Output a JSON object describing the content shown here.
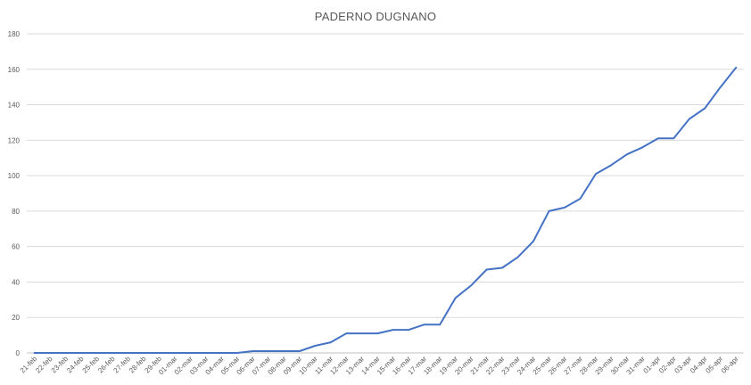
{
  "chart_data": {
    "type": "line",
    "title": "PADERNO DUGNANO",
    "xlabel": "",
    "ylabel": "",
    "ylim": [
      0,
      180
    ],
    "yticks": [
      0,
      20,
      40,
      60,
      80,
      100,
      120,
      140,
      160,
      180
    ],
    "grid": true,
    "legend": "none",
    "line_color": "#4472c4",
    "categories": [
      "21-feb",
      "22-feb",
      "23-feb",
      "24-feb",
      "25-feb",
      "26-feb",
      "27-feb",
      "28-feb",
      "29-feb",
      "01-mar",
      "02-mar",
      "03-mar",
      "04-mar",
      "05-mar",
      "06-mar",
      "07-mar",
      "08-mar",
      "09-mar",
      "10-mar",
      "11-mar",
      "12-mar",
      "13-mar",
      "14-mar",
      "15-mar",
      "16-mar",
      "17-mar",
      "18-mar",
      "19-mar",
      "20-mar",
      "21-mar",
      "22-mar",
      "23-mar",
      "24-mar",
      "25-mar",
      "26-mar",
      "27-mar",
      "28-mar",
      "29-mar",
      "30-mar",
      "31-mar",
      "01-apr",
      "02-apr",
      "03-apr",
      "04-apr",
      "05-apr",
      "06-apr"
    ],
    "series": [
      {
        "values": [
          0,
          0,
          0,
          0,
          0,
          0,
          0,
          0,
          0,
          0,
          0,
          0,
          0,
          0,
          1,
          1,
          1,
          1,
          4,
          6,
          11,
          11,
          11,
          13,
          13,
          16,
          16,
          31,
          38,
          47,
          48,
          54,
          63,
          80,
          82,
          87,
          101,
          106,
          112,
          116,
          121,
          121,
          132,
          138,
          150,
          161
        ]
      }
    ]
  }
}
